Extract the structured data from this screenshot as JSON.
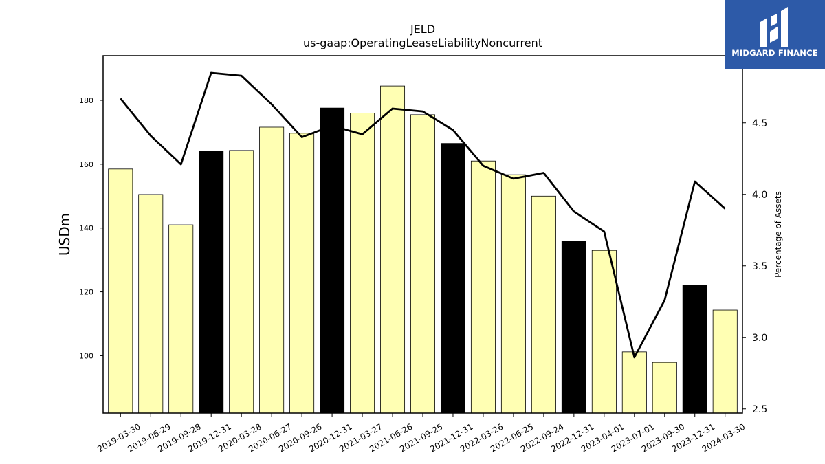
{
  "brand": {
    "name": "MIDGARD FINANCE",
    "color": "#2d5aa8"
  },
  "chart_data": {
    "type": "bar",
    "title": "JELD",
    "subtitle": "us-gaap:OperatingLeaseLiabilityNoncurrent",
    "ylabel": "USDm",
    "y2label": "Percentage of Assets",
    "ylim": [
      82,
      194
    ],
    "y2lim": [
      2.47,
      4.97
    ],
    "yticks": [
      100,
      120,
      140,
      160,
      180
    ],
    "y2ticks": [
      2.5,
      3.0,
      3.5,
      4.0,
      4.5
    ],
    "categories": [
      "2019-03-30",
      "2019-06-29",
      "2019-09-28",
      "2019-12-31",
      "2020-03-28",
      "2020-06-27",
      "2020-09-26",
      "2020-12-31",
      "2021-03-27",
      "2021-06-26",
      "2021-09-25",
      "2021-12-31",
      "2022-03-26",
      "2022-06-25",
      "2022-09-24",
      "2022-12-31",
      "2023-04-01",
      "2023-07-01",
      "2023-09-30",
      "2023-12-31",
      "2024-03-30"
    ],
    "series": [
      {
        "type": "bar",
        "values": [
          158.5,
          150.5,
          141,
          164,
          164.3,
          171.6,
          169.7,
          177.6,
          176,
          184.5,
          175.5,
          166.5,
          161,
          156.7,
          150,
          135.8,
          133,
          101.2,
          97.9,
          122,
          114.3
        ],
        "year_end": [
          false,
          false,
          false,
          true,
          false,
          false,
          false,
          true,
          false,
          false,
          false,
          true,
          false,
          false,
          false,
          true,
          false,
          false,
          false,
          true,
          false
        ]
      },
      {
        "type": "line",
        "axis": "right",
        "values": [
          4.67,
          4.41,
          4.21,
          4.85,
          4.83,
          4.63,
          4.4,
          4.48,
          4.42,
          4.6,
          4.58,
          4.45,
          4.2,
          4.11,
          4.15,
          3.88,
          3.74,
          2.86,
          3.26,
          4.09,
          3.9
        ]
      }
    ],
    "colors": {
      "bar": "#ffffb3",
      "bar_year_end": "#000000",
      "bar_edge": "#000000",
      "line": "#000000"
    },
    "grid": false,
    "legend": "none"
  }
}
